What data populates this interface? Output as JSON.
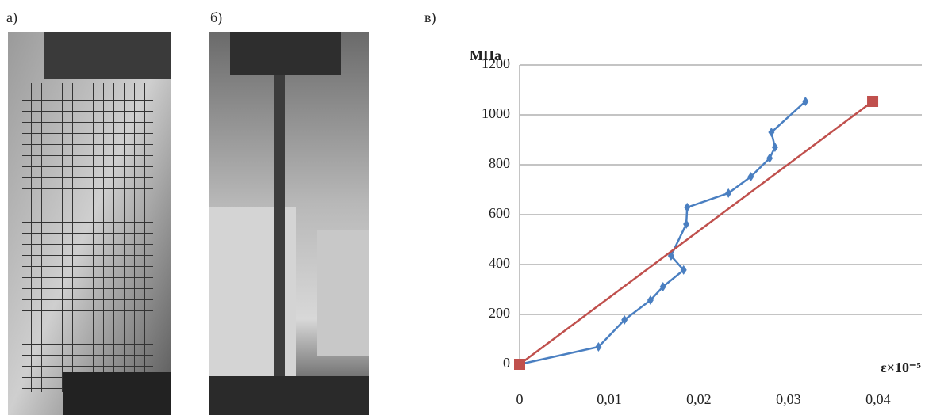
{
  "panels": [
    "а)",
    "б)",
    "в)"
  ],
  "chart_data": {
    "type": "line",
    "ylabel": "МПа",
    "xlabel": "ε×10⁻⁵",
    "xlim": [
      0,
      0.044
    ],
    "ylim": [
      0,
      1200
    ],
    "xticks": [
      0,
      {
        "value": 0.01,
        "label": "0,01"
      },
      {
        "value": 0.02,
        "label": "0,02"
      },
      {
        "value": 0.03,
        "label": "0,03"
      },
      {
        "value": 0.04,
        "label": "0,04"
      }
    ],
    "yticks": [
      0,
      200,
      400,
      600,
      800,
      1000,
      1200
    ],
    "grid": true,
    "series": [
      {
        "color": "#4a7fc1",
        "marker": "diamond",
        "x": [
          0,
          0.0088,
          0.0117,
          0.0146,
          0.016,
          0.0183,
          0.0169,
          0.0186,
          0.0187,
          0.0233,
          0.0258,
          0.0279,
          0.0285,
          0.0281,
          0.0319
        ],
        "values": [
          0,
          70,
          178,
          257,
          311,
          378,
          435,
          562,
          629,
          686,
          752,
          826,
          870,
          930,
          1054
        ]
      },
      {
        "color": "#c0504d",
        "marker": "square",
        "x": [
          0,
          0.0394
        ],
        "values": [
          0,
          1054
        ]
      }
    ]
  }
}
